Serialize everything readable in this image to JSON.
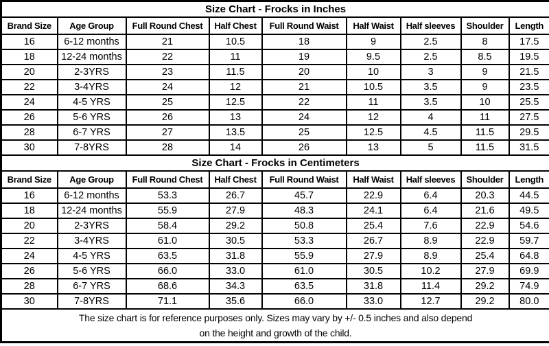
{
  "page": {
    "background_color": "#ffffff",
    "border_color": "#000000",
    "text_color": "#000000"
  },
  "tables": [
    {
      "title": "Size Chart - Frocks in Inches",
      "headers": [
        "Brand Size",
        "Age Group",
        "Full Round Chest",
        "Half Chest",
        "Full Round Waist",
        "Half Waist",
        "Half sleeves",
        "Shoulder",
        "Length"
      ],
      "rows": [
        [
          "16",
          "6-12 months",
          "21",
          "10.5",
          "18",
          "9",
          "2.5",
          "8",
          "17.5"
        ],
        [
          "18",
          "12-24 months",
          "22",
          "11",
          "19",
          "9.5",
          "2.5",
          "8.5",
          "19.5"
        ],
        [
          "20",
          "2-3YRS",
          "23",
          "11.5",
          "20",
          "10",
          "3",
          "9",
          "21.5"
        ],
        [
          "22",
          "3-4YRS",
          "24",
          "12",
          "21",
          "10.5",
          "3.5",
          "9",
          "23.5"
        ],
        [
          "24",
          "4-5 YRS",
          "25",
          "12.5",
          "22",
          "11",
          "3.5",
          "10",
          "25.5"
        ],
        [
          "26",
          "5-6 YRS",
          "26",
          "13",
          "24",
          "12",
          "4",
          "11",
          "27.5"
        ],
        [
          "28",
          "6-7 YRS",
          "27",
          "13.5",
          "25",
          "12.5",
          "4.5",
          "11.5",
          "29.5"
        ],
        [
          "30",
          "7-8YRS",
          "28",
          "14",
          "26",
          "13",
          "5",
          "11.5",
          "31.5"
        ]
      ]
    },
    {
      "title": "Size Chart - Frocks in Centimeters",
      "headers": [
        "Brand Size",
        "Age Group",
        "Full Round Chest",
        "Half Chest",
        "Full Round Waist",
        "Half Waist",
        "Half sleeves",
        "Shoulder",
        "Length"
      ],
      "rows": [
        [
          "16",
          "6-12 months",
          "53.3",
          "26.7",
          "45.7",
          "22.9",
          "6.4",
          "20.3",
          "44.5"
        ],
        [
          "18",
          "12-24 months",
          "55.9",
          "27.9",
          "48.3",
          "24.1",
          "6.4",
          "21.6",
          "49.5"
        ],
        [
          "20",
          "2-3YRS",
          "58.4",
          "29.2",
          "50.8",
          "25.4",
          "7.6",
          "22.9",
          "54.6"
        ],
        [
          "22",
          "3-4YRS",
          "61.0",
          "30.5",
          "53.3",
          "26.7",
          "8.9",
          "22.9",
          "59.7"
        ],
        [
          "24",
          "4-5 YRS",
          "63.5",
          "31.8",
          "55.9",
          "27.9",
          "8.9",
          "25.4",
          "64.8"
        ],
        [
          "26",
          "5-6 YRS",
          "66.0",
          "33.0",
          "61.0",
          "30.5",
          "10.2",
          "27.9",
          "69.9"
        ],
        [
          "28",
          "6-7 YRS",
          "68.6",
          "34.3",
          "63.5",
          "31.8",
          "11.4",
          "29.2",
          "74.9"
        ],
        [
          "30",
          "7-8YRS",
          "71.1",
          "35.6",
          "66.0",
          "33.0",
          "12.7",
          "29.2",
          "80.0"
        ]
      ]
    }
  ],
  "footer": {
    "line1": "The size chart is for reference purposes only. Sizes may vary by +/- 0.5 inches and also depend",
    "line2": "on the height and growth of the child."
  }
}
